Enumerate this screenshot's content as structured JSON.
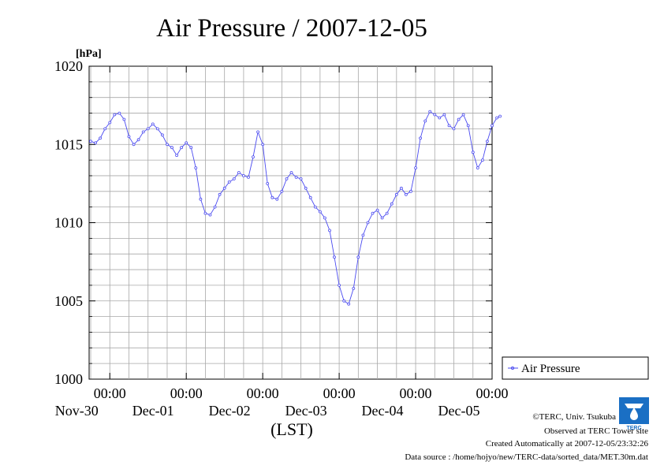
{
  "credits": {
    "copyright": "©TERC, Univ. Tsukuba",
    "site": "Observed at TERC Tower site",
    "created": "Created Automatically at 2007-12-05/23:32:26",
    "source": "Data source : /home/hojyo/new/TERC-data/sorted_data/MET.30m.dat"
  },
  "logo": {
    "text": "TERC",
    "colors": [
      "#1a6fc4",
      "#ffffff"
    ]
  },
  "chart_data": {
    "type": "line",
    "title": "Air Pressure / 2007-12-05",
    "ylabel": "[hPa]",
    "xlabel": "(LST)",
    "ylim": [
      1000,
      1020
    ],
    "yticks": [
      1000,
      1005,
      1010,
      1015,
      1020
    ],
    "ytick_labels": [
      "1000",
      "1005",
      "1010",
      "1015",
      "1020"
    ],
    "x_unit": "hours since Nov-29 00:00 (LST)",
    "xlim": [
      17.5,
      144
    ],
    "xticks": [
      {
        "x": 24,
        "time": "00:00",
        "date": "Nov-30"
      },
      {
        "x": 48,
        "time": "00:00",
        "date": "Dec-01"
      },
      {
        "x": 72,
        "time": "00:00",
        "date": "Dec-02"
      },
      {
        "x": 96,
        "time": "00:00",
        "date": "Dec-03"
      },
      {
        "x": 120,
        "time": "00:00",
        "date": "Dec-04"
      },
      {
        "x": 144,
        "time": "00:00",
        "date": "Dec-05"
      }
    ],
    "grid": true,
    "legend_position": "right",
    "color": "#4a4af0",
    "series": [
      {
        "name": "Air Pressure",
        "points": [
          [
            18.0,
            1015.2
          ],
          [
            19.5,
            1015.1
          ],
          [
            21.0,
            1015.4
          ],
          [
            22.5,
            1016.0
          ],
          [
            24.0,
            1016.4
          ],
          [
            25.5,
            1016.9
          ],
          [
            27.0,
            1017.0
          ],
          [
            28.5,
            1016.6
          ],
          [
            30.0,
            1015.5
          ],
          [
            31.5,
            1015.0
          ],
          [
            33.0,
            1015.3
          ],
          [
            34.5,
            1015.8
          ],
          [
            36.0,
            1016.0
          ],
          [
            37.5,
            1016.3
          ],
          [
            39.0,
            1016.0
          ],
          [
            40.5,
            1015.6
          ],
          [
            42.0,
            1015.0
          ],
          [
            43.5,
            1014.8
          ],
          [
            45.0,
            1014.3
          ],
          [
            46.5,
            1014.8
          ],
          [
            48.0,
            1015.1
          ],
          [
            49.5,
            1014.8
          ],
          [
            51.0,
            1013.5
          ],
          [
            52.5,
            1011.5
          ],
          [
            54.0,
            1010.6
          ],
          [
            55.5,
            1010.5
          ],
          [
            57.0,
            1011.0
          ],
          [
            58.5,
            1011.8
          ],
          [
            60.0,
            1012.2
          ],
          [
            61.5,
            1012.6
          ],
          [
            63.0,
            1012.8
          ],
          [
            64.5,
            1013.2
          ],
          [
            66.0,
            1013.0
          ],
          [
            67.5,
            1012.9
          ],
          [
            69.0,
            1014.2
          ],
          [
            70.5,
            1015.8
          ],
          [
            72.0,
            1015.0
          ],
          [
            73.5,
            1012.5
          ],
          [
            75.0,
            1011.6
          ],
          [
            76.5,
            1011.5
          ],
          [
            78.0,
            1012.0
          ],
          [
            79.5,
            1012.8
          ],
          [
            81.0,
            1013.2
          ],
          [
            82.5,
            1012.9
          ],
          [
            84.0,
            1012.8
          ],
          [
            85.5,
            1012.2
          ],
          [
            87.0,
            1011.6
          ],
          [
            88.5,
            1011.0
          ],
          [
            90.0,
            1010.7
          ],
          [
            91.5,
            1010.3
          ],
          [
            93.0,
            1009.5
          ],
          [
            94.5,
            1007.8
          ],
          [
            96.0,
            1006.0
          ],
          [
            97.5,
            1005.0
          ],
          [
            99.0,
            1004.8
          ],
          [
            100.5,
            1005.8
          ],
          [
            102.0,
            1007.8
          ],
          [
            103.5,
            1009.2
          ],
          [
            105.0,
            1010.0
          ],
          [
            106.5,
            1010.6
          ],
          [
            108.0,
            1010.8
          ],
          [
            109.5,
            1010.3
          ],
          [
            111.0,
            1010.6
          ],
          [
            112.5,
            1011.2
          ],
          [
            114.0,
            1011.8
          ],
          [
            115.5,
            1012.2
          ],
          [
            117.0,
            1011.8
          ],
          [
            118.5,
            1012.0
          ],
          [
            120.0,
            1013.5
          ],
          [
            121.5,
            1015.4
          ],
          [
            123.0,
            1016.5
          ],
          [
            124.5,
            1017.1
          ],
          [
            126.0,
            1016.9
          ],
          [
            127.5,
            1016.7
          ],
          [
            129.0,
            1016.9
          ],
          [
            130.5,
            1016.2
          ],
          [
            132.0,
            1016.0
          ],
          [
            133.5,
            1016.6
          ],
          [
            135.0,
            1016.9
          ],
          [
            136.5,
            1016.2
          ],
          [
            138.0,
            1014.5
          ],
          [
            139.5,
            1013.5
          ],
          [
            141.0,
            1014.0
          ],
          [
            142.5,
            1015.2
          ],
          [
            144.0,
            1016.2
          ],
          [
            145.5,
            1016.7
          ],
          [
            146.5,
            1016.8
          ]
        ]
      }
    ]
  }
}
